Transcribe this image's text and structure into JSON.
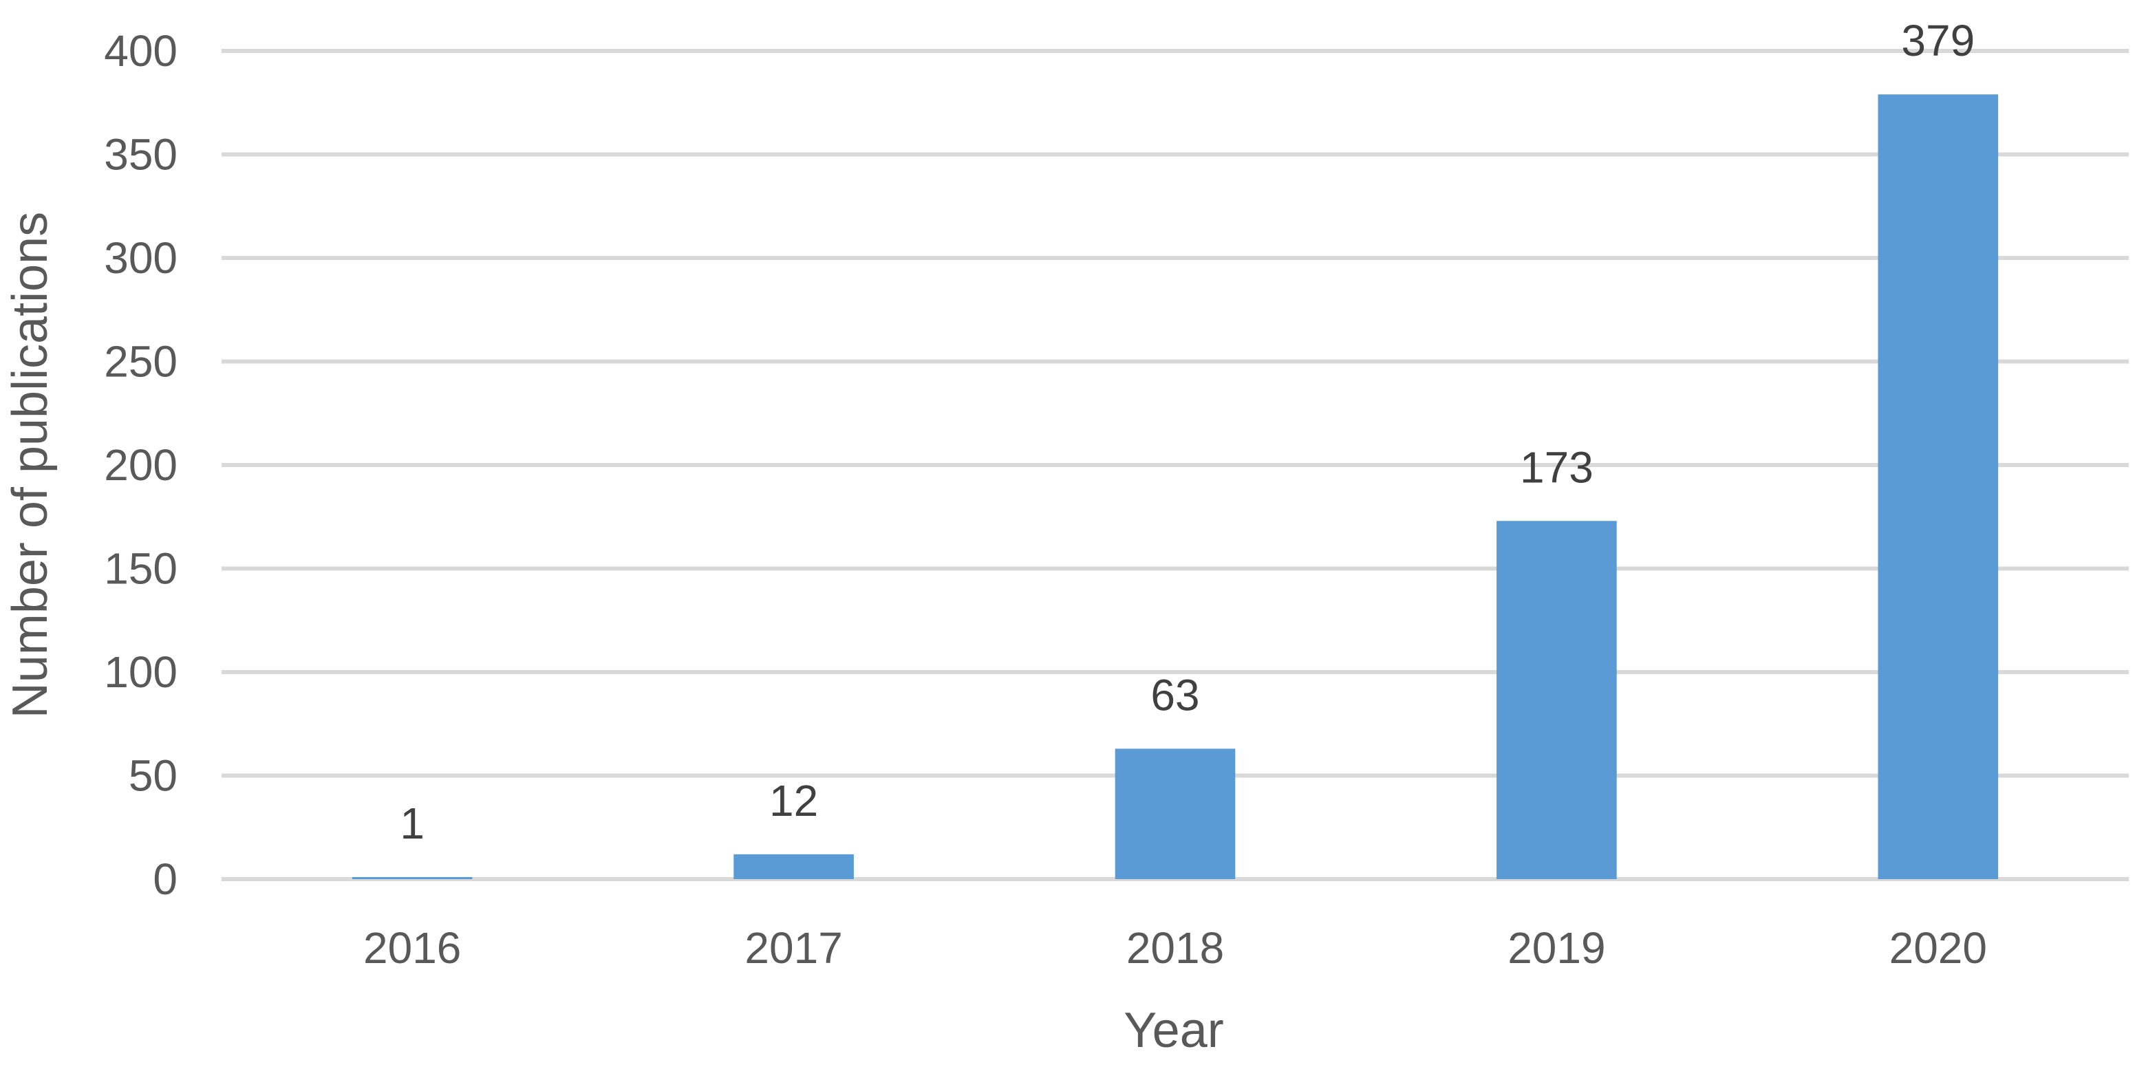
{
  "chart_data": {
    "type": "bar",
    "title": "",
    "xlabel": "Year",
    "ylabel": "Number of publications",
    "categories": [
      "2016",
      "2017",
      "2018",
      "2019",
      "2020"
    ],
    "values": [
      1,
      12,
      63,
      173,
      379
    ],
    "data_labels": [
      "1",
      "12",
      "63",
      "173",
      "379"
    ],
    "ylim": [
      0,
      400
    ],
    "y_ticks": [
      0,
      50,
      100,
      150,
      200,
      250,
      300,
      350,
      400
    ],
    "grid": true,
    "legend": "none",
    "colors": {
      "bar": "#5b9bd5",
      "grid": "#d9d9d9",
      "tick_text": "#595959",
      "data_label_text": "#404040"
    }
  }
}
